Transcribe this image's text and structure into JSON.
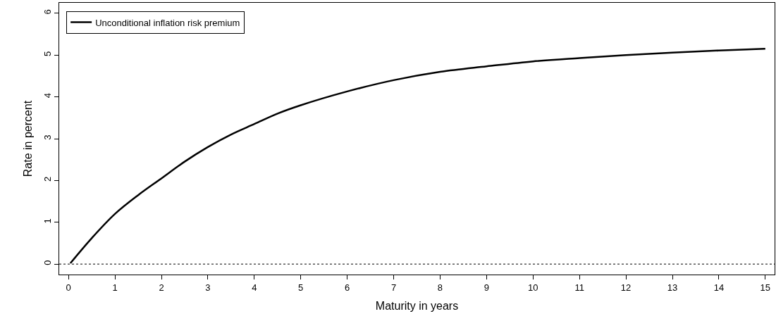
{
  "chart_data": {
    "type": "line",
    "xlabel": "Maturity in years",
    "ylabel": "Rate in percent",
    "x": [
      0.04,
      0.5,
      1,
      1.5,
      2,
      2.5,
      3,
      3.5,
      4,
      4.5,
      5,
      6,
      7,
      8,
      9,
      10,
      11,
      12,
      13,
      14,
      15
    ],
    "series": [
      {
        "name": "Unconditional inflation risk premium",
        "color": "#000000",
        "values": [
          0.02,
          0.62,
          1.2,
          1.65,
          2.05,
          2.45,
          2.8,
          3.1,
          3.35,
          3.6,
          3.8,
          4.13,
          4.4,
          4.6,
          4.73,
          4.85,
          4.93,
          5.0,
          5.06,
          5.11,
          5.15
        ]
      }
    ],
    "xlim": [
      -0.2,
      15.2
    ],
    "ylim": [
      -0.25,
      6.25
    ],
    "xticks": [
      0,
      1,
      2,
      3,
      4,
      5,
      6,
      7,
      8,
      9,
      10,
      11,
      12,
      13,
      14,
      15
    ],
    "yticks": [
      0,
      1,
      2,
      3,
      4,
      5,
      6
    ],
    "ref_lines": [
      {
        "axis": "y",
        "value": 0,
        "color": "#000000",
        "line_style": "dotted"
      }
    ],
    "grid": false,
    "legend": "top left",
    "marker": "none",
    "line_style": "solid"
  }
}
